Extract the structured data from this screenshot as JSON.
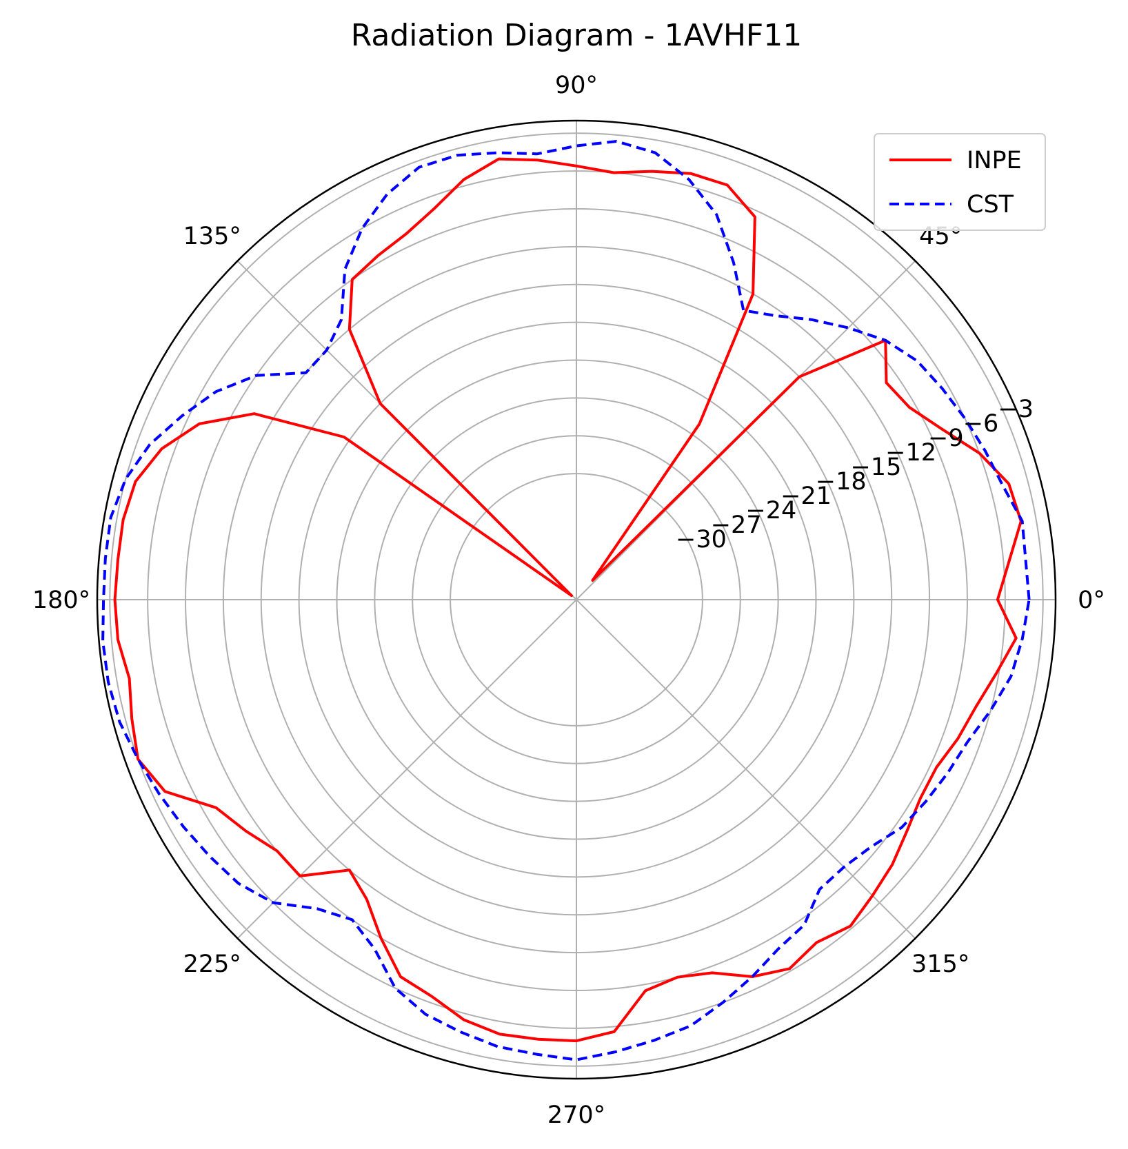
{
  "chart_data": {
    "type": "polar-line",
    "title": "Radiation Diagram - 1AVHF11",
    "angle_unit": "degrees",
    "angle_ticks": [
      0,
      45,
      90,
      135,
      180,
      225,
      270,
      315
    ],
    "angle_tick_labels": [
      "0°",
      "45°",
      "90°",
      "135°",
      "180°",
      "225°",
      "270°",
      "315°"
    ],
    "r_ticks": [
      -30,
      -27,
      -24,
      -21,
      -18,
      -15,
      -12,
      -9,
      -6,
      -3
    ],
    "r_tick_labels": [
      "−30",
      "−27",
      "−24",
      "−21",
      "−18",
      "−15",
      "−12",
      "−9",
      "−6",
      "−3"
    ],
    "rlim": [
      -40,
      -2
    ],
    "r_label_angle_deg": 22.5,
    "grid": true,
    "legend": {
      "position": "top-right"
    },
    "series": [
      {
        "name": "INPE",
        "color": "#ff0000",
        "linestyle": "solid",
        "theta": [
          0,
          10,
          15,
          20,
          25,
          30,
          35,
          40,
          45,
          50,
          55,
          60,
          65,
          70,
          75,
          80,
          85,
          90,
          95,
          100,
          105,
          110,
          115,
          120,
          125,
          130,
          135,
          140,
          145,
          150,
          155,
          160,
          165,
          170,
          175,
          180,
          185,
          190,
          195,
          200,
          205,
          210,
          215,
          220,
          225,
          230,
          235,
          240,
          245,
          250,
          255,
          260,
          265,
          270,
          275,
          280,
          285,
          290,
          295,
          300,
          305,
          310,
          315,
          320,
          325,
          330,
          335,
          340,
          345,
          350,
          355
        ],
        "r": [
          -6.6,
          -4.2,
          -4.5,
          -6.0,
          -8.0,
          -9.5,
          -10.0,
          -8.0,
          -15.0,
          -38.0,
          -23.0,
          -12.0,
          -6.5,
          -5.0,
          -5.0,
          -5.5,
          -6.0,
          -5.6,
          -5.0,
          -4.5,
          -5.5,
          -7.0,
          -8.0,
          -8.5,
          -9.0,
          -12.0,
          -18.0,
          -39.5,
          -17.5,
          -10.5,
          -7.0,
          -5.0,
          -3.8,
          -3.5,
          -3.5,
          -3.4,
          -3.5,
          -4.0,
          -3.5,
          -3.0,
          -4.0,
          -7.0,
          -8.0,
          -9.0,
          -9.0,
          -12.0,
          -11.0,
          -9.0,
          -7.0,
          -6.5,
          -5.5,
          -5.0,
          -5.0,
          -5.0,
          -5.6,
          -8.5,
          -9.0,
          -8.5,
          -7.0,
          -6.2,
          -6.8,
          -6.2,
          -6.8,
          -7.3,
          -8.0,
          -8.5,
          -8.5,
          -7.8,
          -7.2,
          -6.2,
          -5.0
        ]
      },
      {
        "name": "CST",
        "color": "#0000ff",
        "linestyle": "dashed",
        "theta": [
          0,
          10,
          15,
          20,
          25,
          30,
          35,
          40,
          45,
          50,
          55,
          60,
          65,
          70,
          75,
          80,
          85,
          90,
          95,
          100,
          105,
          110,
          115,
          120,
          125,
          130,
          135,
          140,
          145,
          150,
          155,
          160,
          165,
          170,
          175,
          180,
          185,
          190,
          195,
          200,
          205,
          210,
          215,
          220,
          225,
          230,
          235,
          240,
          245,
          250,
          255,
          260,
          265,
          270,
          275,
          280,
          285,
          290,
          295,
          300,
          305,
          310,
          315,
          320,
          325,
          330,
          335,
          340,
          345,
          350,
          355
        ],
        "r": [
          -4.1,
          -4.1,
          -5.0,
          -5.5,
          -6.0,
          -6.5,
          -7.0,
          -8.0,
          -9.5,
          -11.0,
          -12.5,
          -13.5,
          -10.5,
          -7.5,
          -5.5,
          -4.0,
          -3.5,
          -4.0,
          -4.5,
          -4.0,
          -3.5,
          -3.5,
          -4.5,
          -6.0,
          -8.0,
          -11.0,
          -12.0,
          -12.0,
          -9.0,
          -7.0,
          -5.5,
          -4.0,
          -3.0,
          -2.5,
          -2.5,
          -2.5,
          -2.3,
          -2.3,
          -2.5,
          -3.0,
          -3.5,
          -4.0,
          -4.5,
          -5.0,
          -6.0,
          -8.0,
          -9.0,
          -8.0,
          -6.0,
          -5.0,
          -4.5,
          -4.0,
          -3.8,
          -3.5,
          -4.0,
          -4.5,
          -5.0,
          -6.0,
          -7.0,
          -8.0,
          -8.5,
          -10.0,
          -10.0,
          -9.5,
          -8.5,
          -8.0,
          -7.5,
          -7.0,
          -6.0,
          -5.0,
          -4.5
        ]
      }
    ]
  }
}
